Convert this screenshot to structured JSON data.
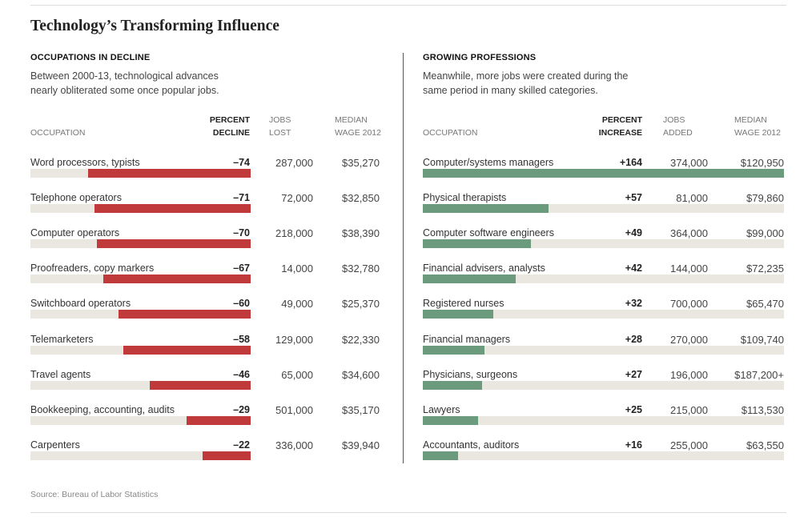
{
  "title": "Technology’s Transforming Influence",
  "source": "Source: Bureau of Labor Statistics",
  "colors": {
    "decline": "#c0393b",
    "growth": "#6b9a7c",
    "track": "#e9e7df"
  },
  "chart_data": [
    {
      "type": "bar",
      "heading": "OCCUPATIONS IN DECLINE",
      "description": [
        "Between 2000-13, technological advances",
        "nearly obliterated some once popular jobs."
      ],
      "columns": {
        "occupation": "OCCUPATION",
        "percent": [
          "PERCENT",
          "DECLINE"
        ],
        "jobs": [
          "JOBS",
          "LOST"
        ],
        "wage": [
          "MEDIAN",
          "WAGE 2012"
        ]
      },
      "scale_max": 164,
      "rows": [
        {
          "occupation": "Word processors, typists",
          "value": -74,
          "label": "–74",
          "jobs": "287,000",
          "wage": "$35,270"
        },
        {
          "occupation": "Telephone operators",
          "value": -71,
          "label": "–71",
          "jobs": "72,000",
          "wage": "$32,850"
        },
        {
          "occupation": "Computer operators",
          "value": -70,
          "label": "–70",
          "jobs": "218,000",
          "wage": "$38,390"
        },
        {
          "occupation": "Proofreaders, copy markers",
          "value": -67,
          "label": "–67",
          "jobs": "14,000",
          "wage": "$32,780"
        },
        {
          "occupation": "Switchboard operators",
          "value": -60,
          "label": "–60",
          "jobs": "49,000",
          "wage": "$25,370"
        },
        {
          "occupation": "Telemarketers",
          "value": -58,
          "label": "–58",
          "jobs": "129,000",
          "wage": "$22,330"
        },
        {
          "occupation": "Travel agents",
          "value": -46,
          "label": "–46",
          "jobs": "65,000",
          "wage": "$34,600"
        },
        {
          "occupation": "Bookkeeping, accounting, audits",
          "value": -29,
          "label": "–29",
          "jobs": "501,000",
          "wage": "$35,170"
        },
        {
          "occupation": "Carpenters",
          "value": -22,
          "label": "–22",
          "jobs": "336,000",
          "wage": "$39,940"
        }
      ]
    },
    {
      "type": "bar",
      "heading": "GROWING PROFESSIONS",
      "description": [
        "Meanwhile, more jobs were created during the",
        "same period in many skilled categories."
      ],
      "columns": {
        "occupation": "OCCUPATION",
        "percent": [
          "PERCENT",
          "INCREASE"
        ],
        "jobs": [
          "JOBS",
          "ADDED"
        ],
        "wage": [
          "MEDIAN",
          "WAGE 2012"
        ]
      },
      "scale_max": 164,
      "rows": [
        {
          "occupation": "Computer/systems managers",
          "value": 164,
          "label": "+164",
          "jobs": "374,000",
          "wage": "$120,950"
        },
        {
          "occupation": "Physical therapists",
          "value": 57,
          "label": "+57",
          "jobs": "81,000",
          "wage": "$79,860"
        },
        {
          "occupation": "Computer software engineers",
          "value": 49,
          "label": "+49",
          "jobs": "364,000",
          "wage": "$99,000"
        },
        {
          "occupation": "Financial advisers, analysts",
          "value": 42,
          "label": "+42",
          "jobs": "144,000",
          "wage": "$72,235"
        },
        {
          "occupation": "Registered nurses",
          "value": 32,
          "label": "+32",
          "jobs": "700,000",
          "wage": "$65,470"
        },
        {
          "occupation": "Financial managers",
          "value": 28,
          "label": "+28",
          "jobs": "270,000",
          "wage": "$109,740"
        },
        {
          "occupation": "Physicians, surgeons",
          "value": 27,
          "label": "+27",
          "jobs": "196,000",
          "wage": "$187,200+"
        },
        {
          "occupation": "Lawyers",
          "value": 25,
          "label": "+25",
          "jobs": "215,000",
          "wage": "$113,530"
        },
        {
          "occupation": "Accountants, auditors",
          "value": 16,
          "label": "+16",
          "jobs": "255,000",
          "wage": "$63,550"
        }
      ]
    }
  ]
}
